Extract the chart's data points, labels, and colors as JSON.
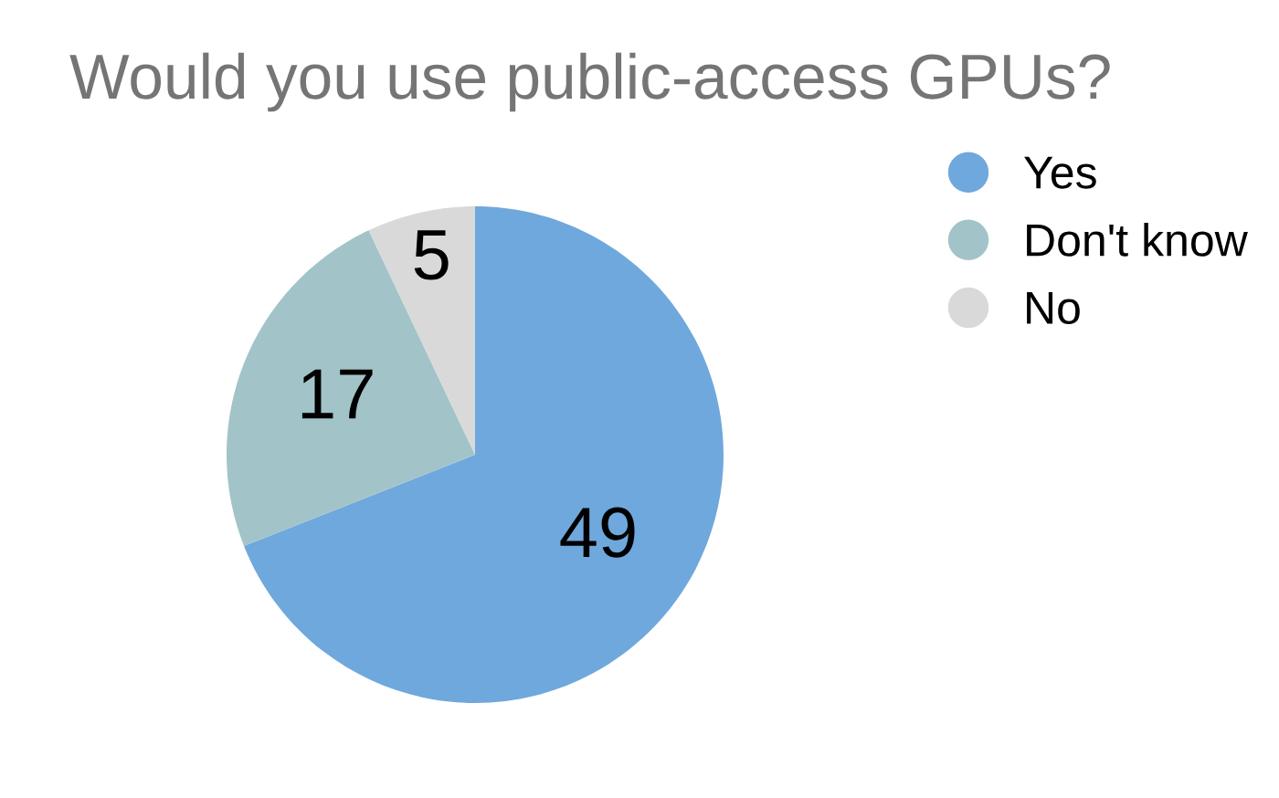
{
  "chart_data": {
    "type": "pie",
    "title": "Would you use public-access GPUs?",
    "categories": [
      "Yes",
      "Don't know",
      "No"
    ],
    "values": [
      49,
      17,
      5
    ],
    "colors": [
      "#6fa8dc",
      "#a2c4c9",
      "#d9d9d9"
    ],
    "data_labels": true,
    "legend": "top right"
  }
}
